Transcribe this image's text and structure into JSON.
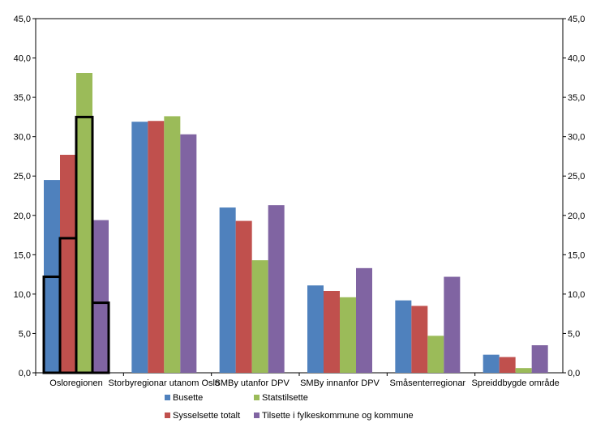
{
  "chart_data": {
    "type": "bar",
    "categories": [
      "Osloregionen",
      "Storbyregionar utanom Oslo",
      "SMBy utanfor DPV",
      "SMBy innanfor DPV",
      "Småsenterregionar",
      "Spreiddbygde område"
    ],
    "series": [
      {
        "name": "Busette",
        "color": "#4f81bd",
        "values": [
          24.5,
          31.9,
          21.0,
          11.1,
          9.2,
          2.3
        ]
      },
      {
        "name": "Sysselsette totalt",
        "color": "#c0504d",
        "values": [
          27.7,
          32.0,
          19.3,
          10.4,
          8.5,
          2.0
        ]
      },
      {
        "name": "Statstilsette",
        "color": "#9bbb59",
        "values": [
          38.1,
          32.6,
          14.3,
          9.6,
          4.7,
          0.6
        ]
      },
      {
        "name": "Tilsette i fylkeskommune og kommune",
        "color": "#8064a2",
        "values": [
          19.4,
          30.3,
          21.3,
          13.3,
          12.2,
          3.5
        ]
      }
    ],
    "overlay_outlines": {
      "category": "Osloregionen",
      "values": [
        12.2,
        17.1,
        32.5,
        8.9
      ],
      "stroke": "#000000"
    },
    "y_ticks": [
      "0,0",
      "5,0",
      "10,0",
      "15,0",
      "20,0",
      "25,0",
      "30,0",
      "35,0",
      "40,0",
      "45,0"
    ],
    "ylim": [
      0,
      45
    ],
    "secondary_axis": true,
    "grid": false,
    "legend_position": "bottom"
  }
}
